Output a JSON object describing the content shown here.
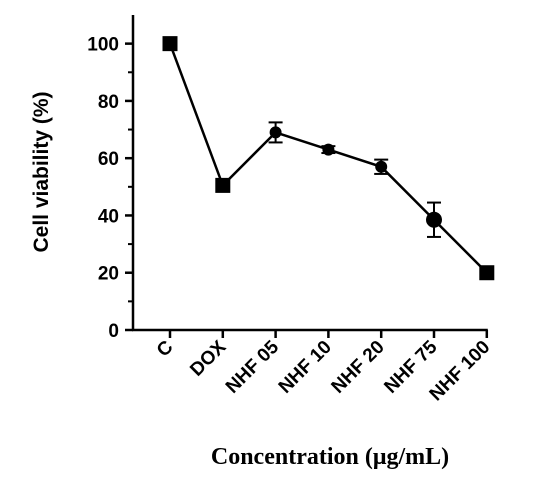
{
  "chart_data": {
    "type": "line",
    "categories": [
      "C",
      "DOX",
      "NHF 05",
      "NHF 10",
      "NHF 20",
      "NHF 75",
      "NHF 100"
    ],
    "series": [
      {
        "values": [
          100,
          50.5,
          69,
          63,
          57,
          38.5,
          20
        ],
        "errors": [
          1.5,
          0.8,
          3.5,
          1.2,
          2.5,
          6,
          0.8
        ],
        "markers": [
          "square",
          "square",
          "circle",
          "circle",
          "circle",
          "circle",
          "square"
        ],
        "color": "#000000"
      }
    ],
    "xlabel": "Concentration (μg/mL)",
    "ylabel": "Cell viability (%)",
    "ylim": [
      0,
      110
    ],
    "yticks": [
      0,
      20,
      40,
      60,
      80,
      100
    ],
    "grid": false,
    "legend": "none"
  }
}
